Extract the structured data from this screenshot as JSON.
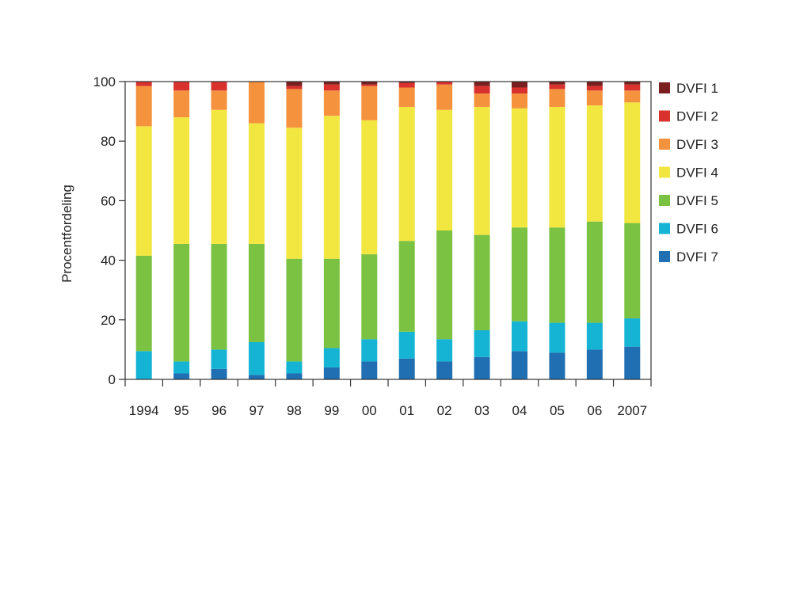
{
  "chart_data": {
    "type": "bar",
    "stacked": true,
    "title": "",
    "xlabel": "",
    "ylabel": "Procentfordeling",
    "ylim": [
      0,
      100
    ],
    "yticks": [
      "0",
      "20",
      "40",
      "60",
      "80",
      "100"
    ],
    "grid": false,
    "legend_position": "right",
    "categories": [
      "1994",
      "95",
      "96",
      "97",
      "98",
      "99",
      "00",
      "01",
      "02",
      "03",
      "04",
      "05",
      "06",
      "2007"
    ],
    "series": [
      {
        "name": "DVFI 7",
        "color": "#1f6fb2",
        "values": [
          0,
          2,
          3.5,
          1.5,
          2,
          4,
          6,
          7,
          6,
          7.5,
          9.5,
          9,
          10,
          11
        ]
      },
      {
        "name": "DVFI 6",
        "color": "#16b4d4",
        "values": [
          9.5,
          4,
          6.5,
          11,
          4,
          6.5,
          7.5,
          9,
          7.5,
          9,
          10,
          10,
          9,
          9.5
        ]
      },
      {
        "name": "DVFI 5",
        "color": "#7cc242",
        "values": [
          32,
          39.5,
          35.5,
          33,
          34.5,
          30,
          28.5,
          30.5,
          36.5,
          32,
          31.5,
          32,
          34,
          32
        ]
      },
      {
        "name": "DVFI 4",
        "color": "#f2e640",
        "values": [
          43.5,
          42.5,
          45,
          40.5,
          44,
          48,
          45,
          45,
          40.5,
          43,
          40,
          40.5,
          39,
          40.5
        ]
      },
      {
        "name": "DVFI 3",
        "color": "#f5923e",
        "values": [
          13.5,
          9,
          6.5,
          14,
          13,
          8.5,
          11.5,
          6.5,
          8.5,
          4.5,
          5,
          6,
          5,
          4
        ]
      },
      {
        "name": "DVFI 2",
        "color": "#d8312e",
        "values": [
          1.5,
          3,
          3,
          0,
          1,
          2,
          0.5,
          1.5,
          1,
          2.5,
          2,
          1.5,
          1.5,
          2
        ]
      },
      {
        "name": "DVFI 1",
        "color": "#7a1f1f",
        "values": [
          0,
          0,
          0,
          0,
          1.5,
          1,
          1,
          0.5,
          0,
          1.5,
          2,
          1,
          1.5,
          1
        ]
      }
    ],
    "legend_order": [
      "DVFI 1",
      "DVFI 2",
      "DVFI 3",
      "DVFI 4",
      "DVFI 5",
      "DVFI 6",
      "DVFI 7"
    ]
  }
}
